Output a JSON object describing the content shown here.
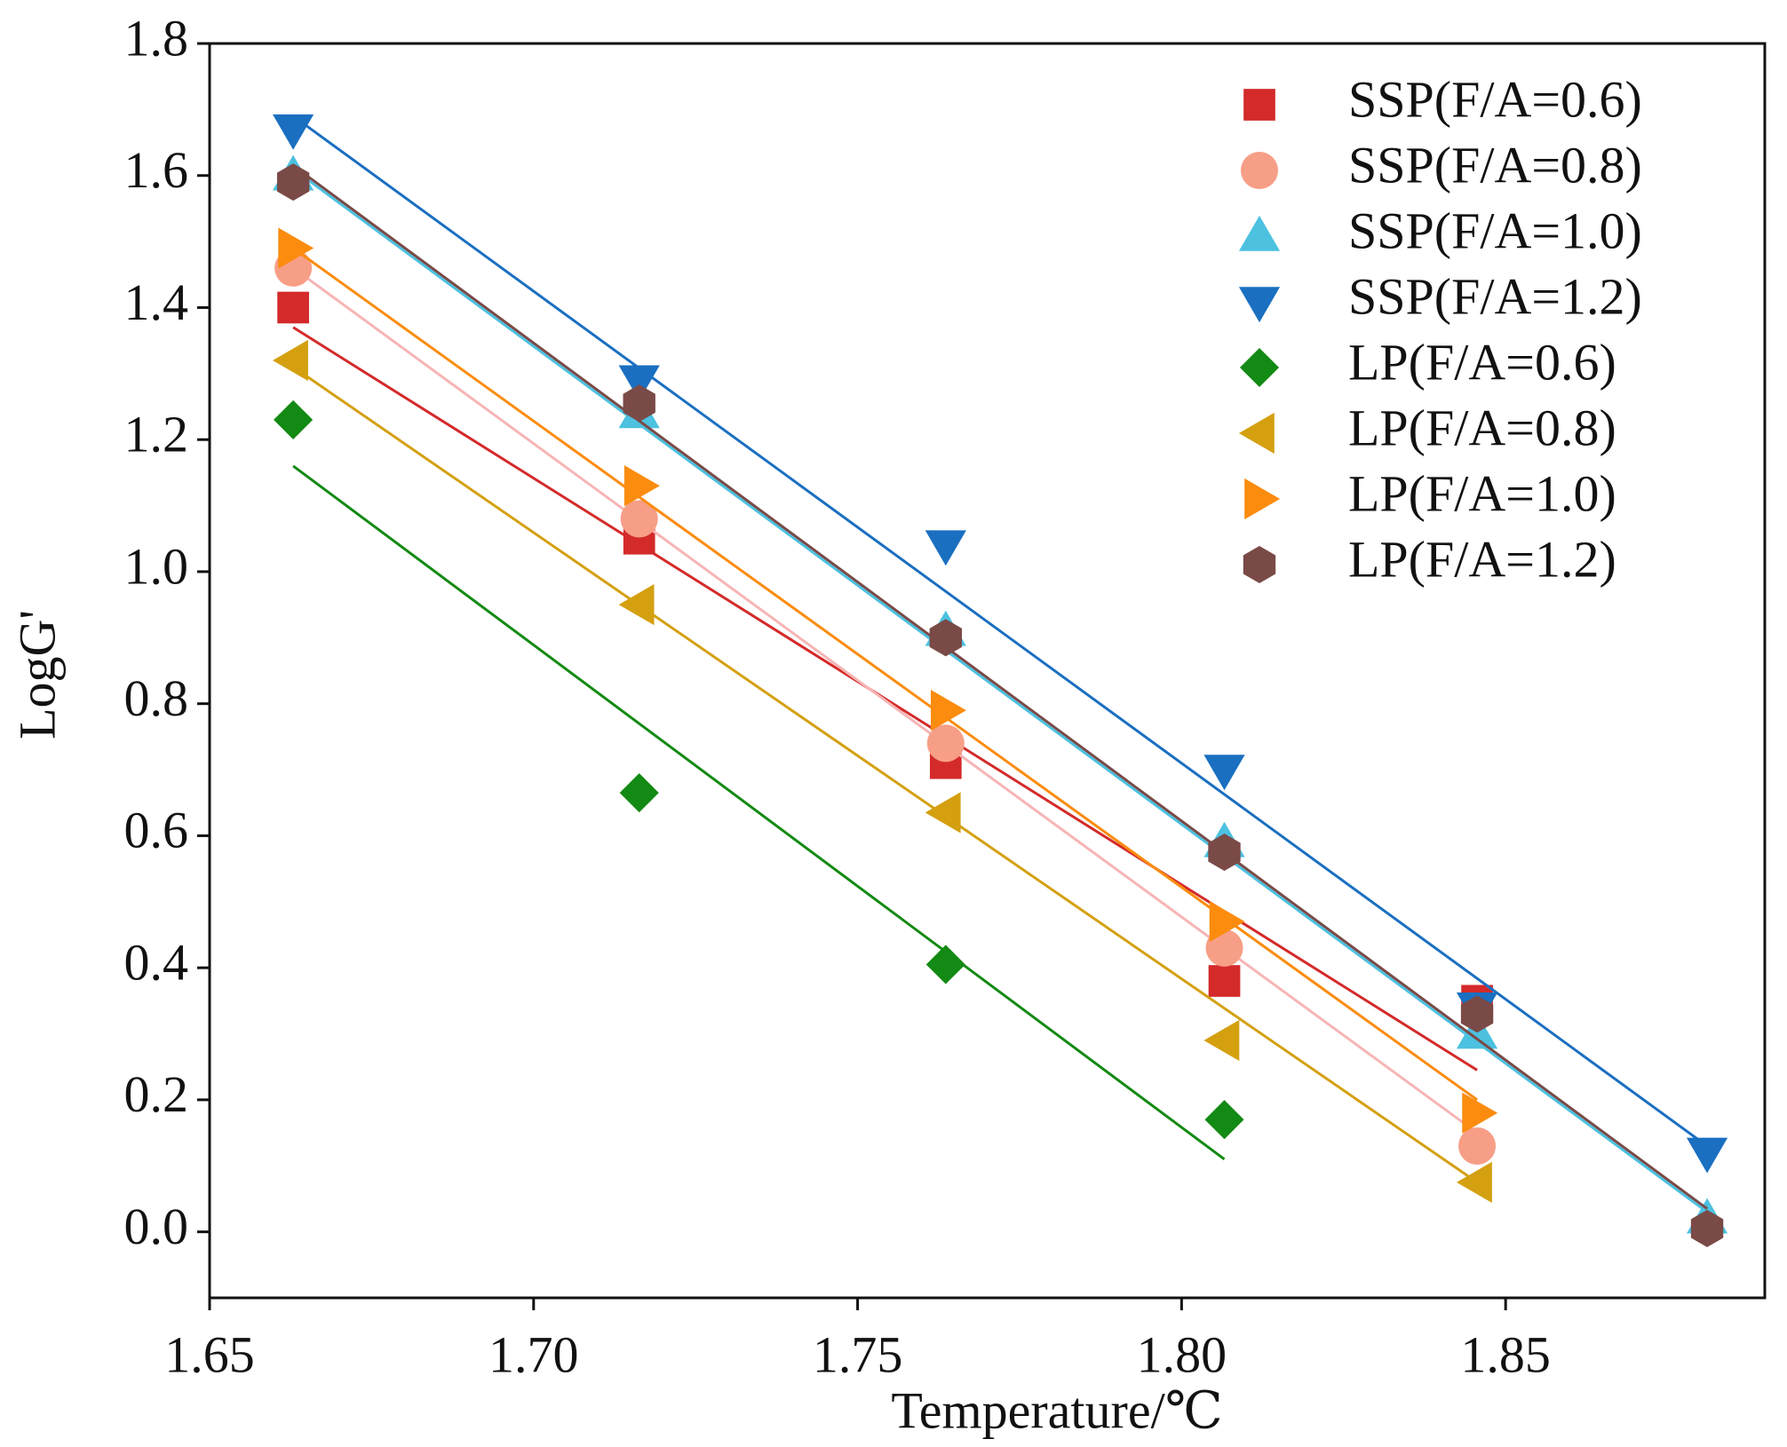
{
  "chart_data": {
    "type": "scatter",
    "xlabel": "Temperature/℃",
    "ylabel": "LogG'",
    "xlim": [
      1.65,
      1.89
    ],
    "ylim": [
      -0.1,
      1.8
    ],
    "xticks": [
      1.65,
      {
        "value": 1.7,
        "label": "1.70"
      },
      1.75,
      {
        "value": 1.8,
        "label": "1.80"
      },
      1.85
    ],
    "yticks": [
      {
        "value": 0,
        "label": "0.0"
      },
      0.2,
      0.4,
      0.6,
      0.8,
      {
        "value": 1,
        "label": "1.0"
      },
      1.2,
      1.4,
      1.6,
      1.8
    ],
    "legend": "upper right",
    "series": [
      {
        "name": "SSP(F/A=0.6)",
        "color": "#d42a2a",
        "marker": "square",
        "x": [
          1.6629,
          1.7163,
          1.7636,
          1.8066,
          1.8456
        ],
        "values": [
          1.4,
          1.05,
          0.71,
          0.38,
          0.35
        ],
        "fit": {
          "x": [
            1.6629,
            1.8456
          ],
          "values": [
            1.37,
            0.245
          ]
        }
      },
      {
        "name": "SSP(F/A=0.8)",
        "color": "#f79e86",
        "linecolor": "#f7b5b5",
        "marker": "circle",
        "x": [
          1.6629,
          1.7163,
          1.7636,
          1.8066,
          1.8456
        ],
        "values": [
          1.46,
          1.08,
          0.74,
          0.43,
          0.13
        ],
        "fit": {
          "x": [
            1.6629,
            1.8456
          ],
          "values": [
            1.46,
            0.15
          ]
        }
      },
      {
        "name": "SSP(F/A=1.0)",
        "color": "#4cc1e0",
        "marker": "triangle-up",
        "x": [
          1.6629,
          1.7163,
          1.7636,
          1.8066,
          1.8456,
          1.8811
        ],
        "values": [
          1.6,
          1.24,
          0.91,
          0.59,
          0.3,
          0.02
        ],
        "fit": {
          "x": [
            1.6629,
            1.8811
          ],
          "values": [
            1.61,
            0.03
          ]
        }
      },
      {
        "name": "SSP(F/A=1.2)",
        "color": "#1a6fc1",
        "marker": "triangle-down",
        "x": [
          1.6629,
          1.7163,
          1.7636,
          1.8066,
          1.8456,
          1.8811
        ],
        "values": [
          1.67,
          1.29,
          1.04,
          0.7,
          0.34,
          0.12
        ],
        "fit": {
          "x": [
            1.6629,
            1.8811
          ],
          "values": [
            1.69,
            0.13
          ]
        }
      },
      {
        "name": "LP(F/A=0.6)",
        "color": "#138a13",
        "marker": "diamond",
        "x": [
          1.6629,
          1.7163,
          1.7636,
          1.8066
        ],
        "values": [
          1.23,
          0.665,
          0.405,
          0.17
        ],
        "fit": {
          "x": [
            1.6629,
            1.8066
          ],
          "values": [
            1.16,
            0.11
          ]
        }
      },
      {
        "name": "LP(F/A=0.8)",
        "color": "#d4a010",
        "marker": "triangle-left",
        "x": [
          1.6629,
          1.7163,
          1.7636,
          1.8066,
          1.8456
        ],
        "values": [
          1.32,
          0.95,
          0.635,
          0.29,
          0.075
        ],
        "fit": {
          "x": [
            1.6629,
            1.8456
          ],
          "values": [
            1.31,
            0.075
          ]
        }
      },
      {
        "name": "LP(F/A=1.0)",
        "color": "#fb8c0e",
        "marker": "triangle-right",
        "x": [
          1.6629,
          1.7163,
          1.7636,
          1.8066,
          1.8456
        ],
        "values": [
          1.49,
          1.13,
          0.79,
          0.47,
          0.18
        ],
        "fit": {
          "x": [
            1.6629,
            1.8456
          ],
          "values": [
            1.49,
            0.2
          ]
        }
      },
      {
        "name": "LP(F/A=1.2)",
        "color": "#7a4a47",
        "marker": "hexagon",
        "x": [
          1.6629,
          1.7163,
          1.7636,
          1.8066,
          1.8456,
          1.8811
        ],
        "values": [
          1.59,
          1.255,
          0.9,
          0.575,
          0.33,
          0.005
        ],
        "fit": {
          "x": [
            1.6629,
            1.8811
          ],
          "values": [
            1.615,
            0.035
          ]
        }
      }
    ]
  }
}
